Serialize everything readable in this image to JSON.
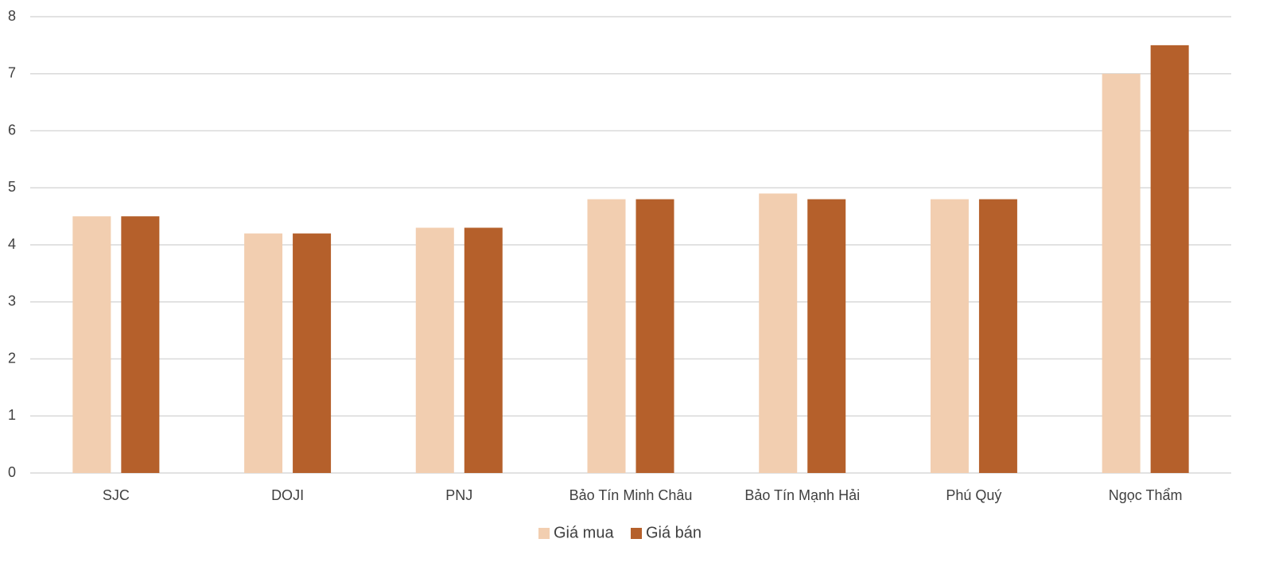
{
  "chart_data": {
    "type": "bar",
    "categories": [
      "SJC",
      "DOJI",
      "PNJ",
      "Bảo Tín Minh Châu",
      "Bảo Tín Mạnh Hải",
      "Phú Quý",
      "Ngọc Thẩm"
    ],
    "series": [
      {
        "name": "Giá mua",
        "color": "#f2ceb0",
        "values": [
          4.5,
          4.2,
          4.3,
          4.8,
          4.9,
          4.8,
          7.0
        ]
      },
      {
        "name": "Giá bán",
        "color": "#b5602b",
        "values": [
          4.5,
          4.2,
          4.3,
          4.8,
          4.8,
          4.8,
          7.5
        ]
      }
    ],
    "ylim": [
      0,
      8
    ],
    "yticks": [
      0,
      1,
      2,
      3,
      4,
      5,
      6,
      7,
      8
    ],
    "grid": true,
    "legend": "bottom"
  }
}
